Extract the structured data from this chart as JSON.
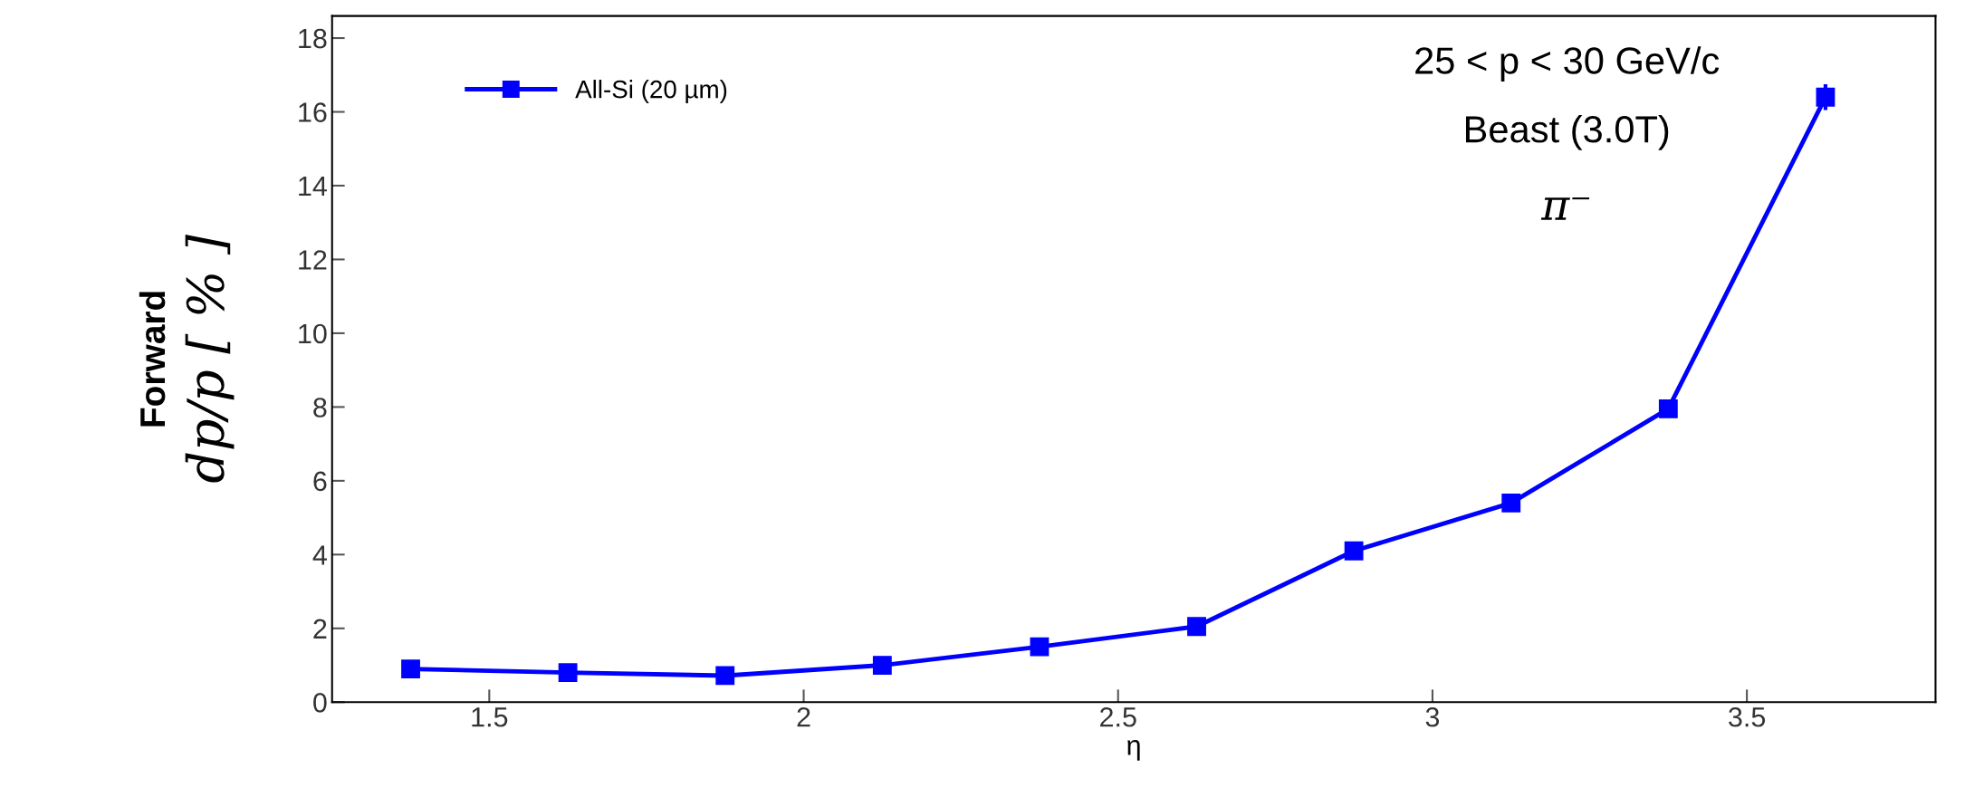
{
  "chart_data": {
    "type": "line",
    "xlabel": "η",
    "ylabel": "dp/p [ % ]",
    "x": [
      1.375,
      1.625,
      1.875,
      2.125,
      2.375,
      2.625,
      2.875,
      3.125,
      3.375,
      3.625
    ],
    "series": [
      {
        "name": "All-Si (20 µm)",
        "color": "#0000ff",
        "values": [
          0.9,
          0.8,
          0.72,
          1.0,
          1.5,
          2.05,
          4.1,
          5.4,
          7.95,
          16.4
        ],
        "errors": [
          null,
          null,
          null,
          null,
          null,
          null,
          null,
          null,
          null,
          0.35
        ]
      }
    ],
    "xlim": [
      1.25,
      3.8
    ],
    "xticks": [
      1.5,
      2,
      2.5,
      3,
      3.5
    ],
    "ylim": [
      0,
      18.6
    ],
    "yticks": [
      0,
      2,
      4,
      6,
      8,
      10,
      12,
      14,
      16,
      18
    ],
    "annotations": [
      "Forward",
      "25 < p < 30 GeV/c",
      "Beast (3.0T)",
      "π⁻"
    ],
    "marker": "square",
    "grid": false,
    "legend": "top left"
  }
}
